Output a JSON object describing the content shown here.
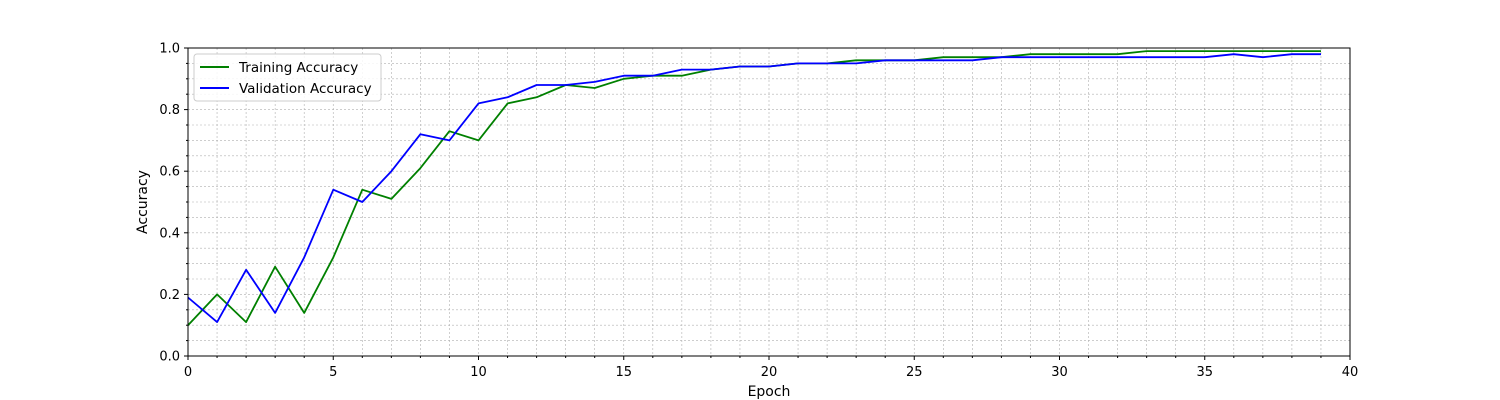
{
  "chart_data": {
    "type": "line",
    "xlabel": "Epoch",
    "ylabel": "Accuracy",
    "xlim": [
      0,
      40
    ],
    "ylim": [
      0.0,
      1.0
    ],
    "xticks": [
      0,
      5,
      10,
      15,
      20,
      25,
      30,
      35,
      40
    ],
    "xtick_labels": [
      "0",
      "5",
      "10",
      "15",
      "20",
      "25",
      "30",
      "35",
      "40"
    ],
    "yticks": [
      0.0,
      0.2,
      0.4,
      0.6,
      0.8,
      1.0
    ],
    "ytick_labels": [
      "0.0",
      "0.2",
      "0.4",
      "0.6",
      "0.8",
      "1.0"
    ],
    "grid": true,
    "legend_position": "top-left",
    "x": [
      0,
      1,
      2,
      3,
      4,
      5,
      6,
      7,
      8,
      9,
      10,
      11,
      12,
      13,
      14,
      15,
      16,
      17,
      18,
      19,
      20,
      21,
      22,
      23,
      24,
      25,
      26,
      27,
      28,
      29,
      30,
      31,
      32,
      33,
      34,
      35,
      36,
      37,
      38,
      39
    ],
    "series": [
      {
        "name": "Training Accuracy",
        "color": "#008000",
        "values": [
          0.1,
          0.2,
          0.11,
          0.29,
          0.14,
          0.32,
          0.54,
          0.51,
          0.61,
          0.73,
          0.7,
          0.82,
          0.84,
          0.88,
          0.87,
          0.9,
          0.91,
          0.91,
          0.93,
          0.94,
          0.94,
          0.95,
          0.95,
          0.96,
          0.96,
          0.96,
          0.97,
          0.97,
          0.97,
          0.98,
          0.98,
          0.98,
          0.98,
          0.99,
          0.99,
          0.99,
          0.99,
          0.99,
          0.99,
          0.99
        ]
      },
      {
        "name": "Validation Accuracy",
        "color": "#0000ff",
        "values": [
          0.19,
          0.11,
          0.28,
          0.14,
          0.32,
          0.54,
          0.5,
          0.6,
          0.72,
          0.7,
          0.82,
          0.84,
          0.88,
          0.88,
          0.89,
          0.91,
          0.91,
          0.93,
          0.93,
          0.94,
          0.94,
          0.95,
          0.95,
          0.95,
          0.96,
          0.96,
          0.96,
          0.96,
          0.97,
          0.97,
          0.97,
          0.97,
          0.97,
          0.97,
          0.97,
          0.97,
          0.98,
          0.97,
          0.98,
          0.98
        ]
      }
    ]
  }
}
